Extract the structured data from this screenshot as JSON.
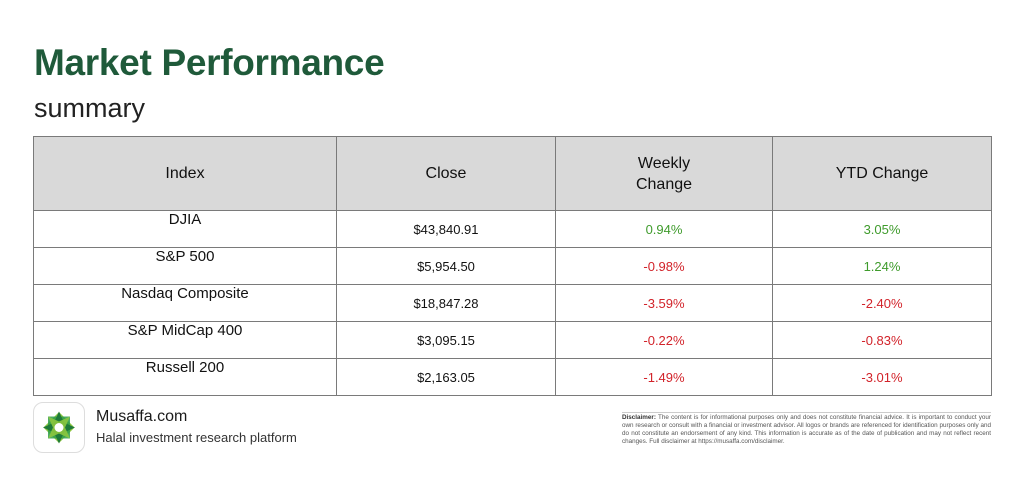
{
  "title": "Market Performance",
  "subtitle": "summary",
  "colors": {
    "title": "#1f5a3a",
    "positive": "#3f9b2c",
    "negative": "#d2232a",
    "header_bg": "#d9d9d9"
  },
  "table": {
    "headers": [
      "Index",
      "Close",
      "Weekly Change",
      "YTD Change"
    ],
    "rows": [
      {
        "index": "DJIA",
        "close": "$43,840.91",
        "weekly": "0.94%",
        "ytd": "3.05%"
      },
      {
        "index": "S&P 500",
        "close": "$5,954.50",
        "weekly": "-0.98%",
        "ytd": "1.24%"
      },
      {
        "index": "Nasdaq Composite",
        "close": "$18,847.28",
        "weekly": "-3.59%",
        "ytd": "-2.40%"
      },
      {
        "index": "S&P MidCap 400",
        "close": "$3,095.15",
        "weekly": "-0.22%",
        "ytd": "-0.83%"
      },
      {
        "index": "Russell 200",
        "close": "$2,163.05",
        "weekly": "-1.49%",
        "ytd": "-3.01%"
      }
    ]
  },
  "footer": {
    "logo_icon": "musaffa-logo-icon",
    "brand_name": "Musaffa.com",
    "tagline": "Halal investment research platform",
    "disclaimer_label": "Disclaimer:",
    "disclaimer_text": "The content is for informational purposes only and does not constitute financial advice. It is important to conduct your own research or consult with a financial or investment advisor. All logos or brands are referenced for identification purposes only and do not constitute an endorsement of any kind. This information is accurate as of the date of publication and may not reflect recent changes. Full disclaimer at https://musaffa.com/disclaimer."
  }
}
